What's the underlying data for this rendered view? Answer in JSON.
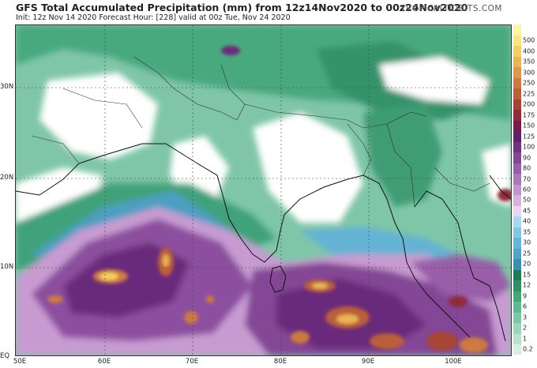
{
  "header": {
    "title": "GFS Total Accumulated Precipitation (mm) from 12z14Nov2020 to 00z24Nov2020",
    "subtitle": "Init: 12z Nov 14 2020   Forecast Hour: [228]   valid at 00z Tue, Nov 24 2020",
    "brand": "TROPICALTIDBITS.COM"
  },
  "axes": {
    "lat_labels": [
      "30N",
      "20N",
      "10N",
      "EQ"
    ],
    "lon_labels": [
      "50E",
      "60E",
      "70E",
      "80E",
      "90E",
      "100E"
    ]
  },
  "colorbar": {
    "levels": [
      {
        "label": "0.2",
        "color": "#d8eee4"
      },
      {
        "label": "1",
        "color": "#b8e2cf"
      },
      {
        "label": "2",
        "color": "#98d5bb"
      },
      {
        "label": "3",
        "color": "#7cc8a6"
      },
      {
        "label": "6",
        "color": "#5eba90"
      },
      {
        "label": "9",
        "color": "#43a877"
      },
      {
        "label": "12",
        "color": "#2f9163"
      },
      {
        "label": "15",
        "color": "#1f7a55"
      },
      {
        "label": "20",
        "color": "#3a8fb0"
      },
      {
        "label": "25",
        "color": "#4ea3c6"
      },
      {
        "label": "30",
        "color": "#65b6d8"
      },
      {
        "label": "35",
        "color": "#83c7e3"
      },
      {
        "label": "40",
        "color": "#a6d8ee"
      },
      {
        "label": "45",
        "color": "#e9d6ee"
      },
      {
        "label": "50",
        "color": "#d4b3dd"
      },
      {
        "label": "60",
        "color": "#c094cc"
      },
      {
        "label": "70",
        "color": "#ac78ba"
      },
      {
        "label": "80",
        "color": "#985ea8"
      },
      {
        "label": "90",
        "color": "#844695"
      },
      {
        "label": "100",
        "color": "#713280"
      },
      {
        "label": "125",
        "color": "#5f2268"
      },
      {
        "label": "150",
        "color": "#7a1c47"
      },
      {
        "label": "175",
        "color": "#932b3a"
      },
      {
        "label": "200",
        "color": "#a84436"
      },
      {
        "label": "225",
        "color": "#bb5e3a"
      },
      {
        "label": "250",
        "color": "#cc7a40"
      },
      {
        "label": "300",
        "color": "#db9848"
      },
      {
        "label": "350",
        "color": "#e8b654"
      },
      {
        "label": "400",
        "color": "#f1d063"
      },
      {
        "label": "500",
        "color": "#f8e67a"
      },
      {
        "label": "",
        "color": "#fdf4a6"
      }
    ]
  }
}
